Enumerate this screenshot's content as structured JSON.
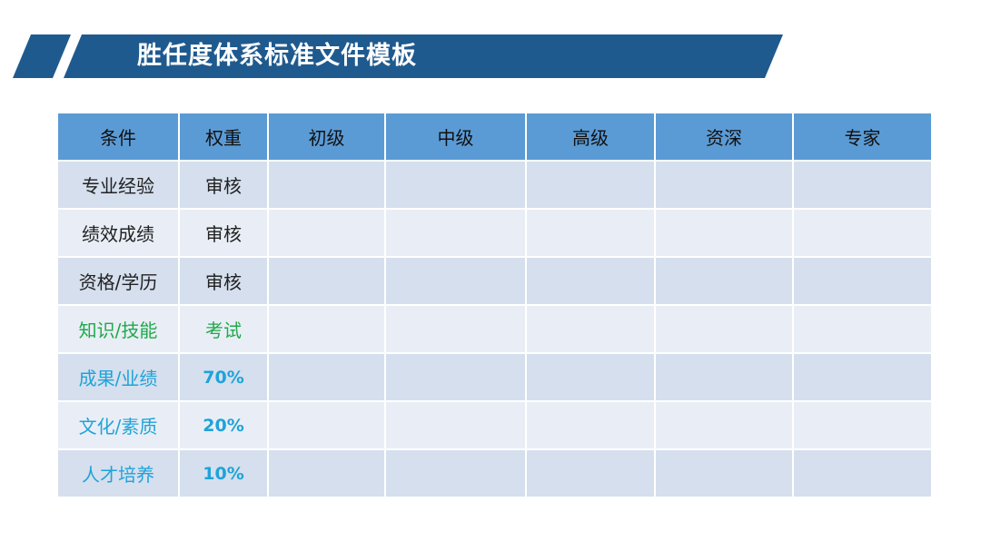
{
  "title": "胜任度体系标准文件模板",
  "colors": {
    "banner": "#1f5a8f",
    "header_bg": "#5b9bd5",
    "row_dark": "#d5dfee",
    "row_light": "#e9eef6",
    "green_text": "#1fa94a",
    "cyan_text": "#1fa3d8"
  },
  "table": {
    "headers": [
      "条件",
      "权重",
      "初级",
      "中级",
      "高级",
      "资深",
      "专家"
    ],
    "rows": [
      {
        "condition": "专业经验",
        "weight": "审核",
        "tone": "default",
        "levels": [
          "",
          "",
          "",
          "",
          ""
        ]
      },
      {
        "condition": "绩效成绩",
        "weight": "审核",
        "tone": "default",
        "levels": [
          "",
          "",
          "",
          "",
          ""
        ]
      },
      {
        "condition": "资格/学历",
        "weight": "审核",
        "tone": "default",
        "levels": [
          "",
          "",
          "",
          "",
          ""
        ]
      },
      {
        "condition": "知识/技能",
        "weight": "考试",
        "tone": "green",
        "levels": [
          "",
          "",
          "",
          "",
          ""
        ]
      },
      {
        "condition": "成果/业绩",
        "weight": "70%",
        "tone": "cyan",
        "levels": [
          "",
          "",
          "",
          "",
          ""
        ]
      },
      {
        "condition": "文化/素质",
        "weight": "20%",
        "tone": "cyan",
        "levels": [
          "",
          "",
          "",
          "",
          ""
        ]
      },
      {
        "condition": "人才培养",
        "weight": "10%",
        "tone": "cyan",
        "levels": [
          "",
          "",
          "",
          "",
          ""
        ]
      }
    ]
  }
}
